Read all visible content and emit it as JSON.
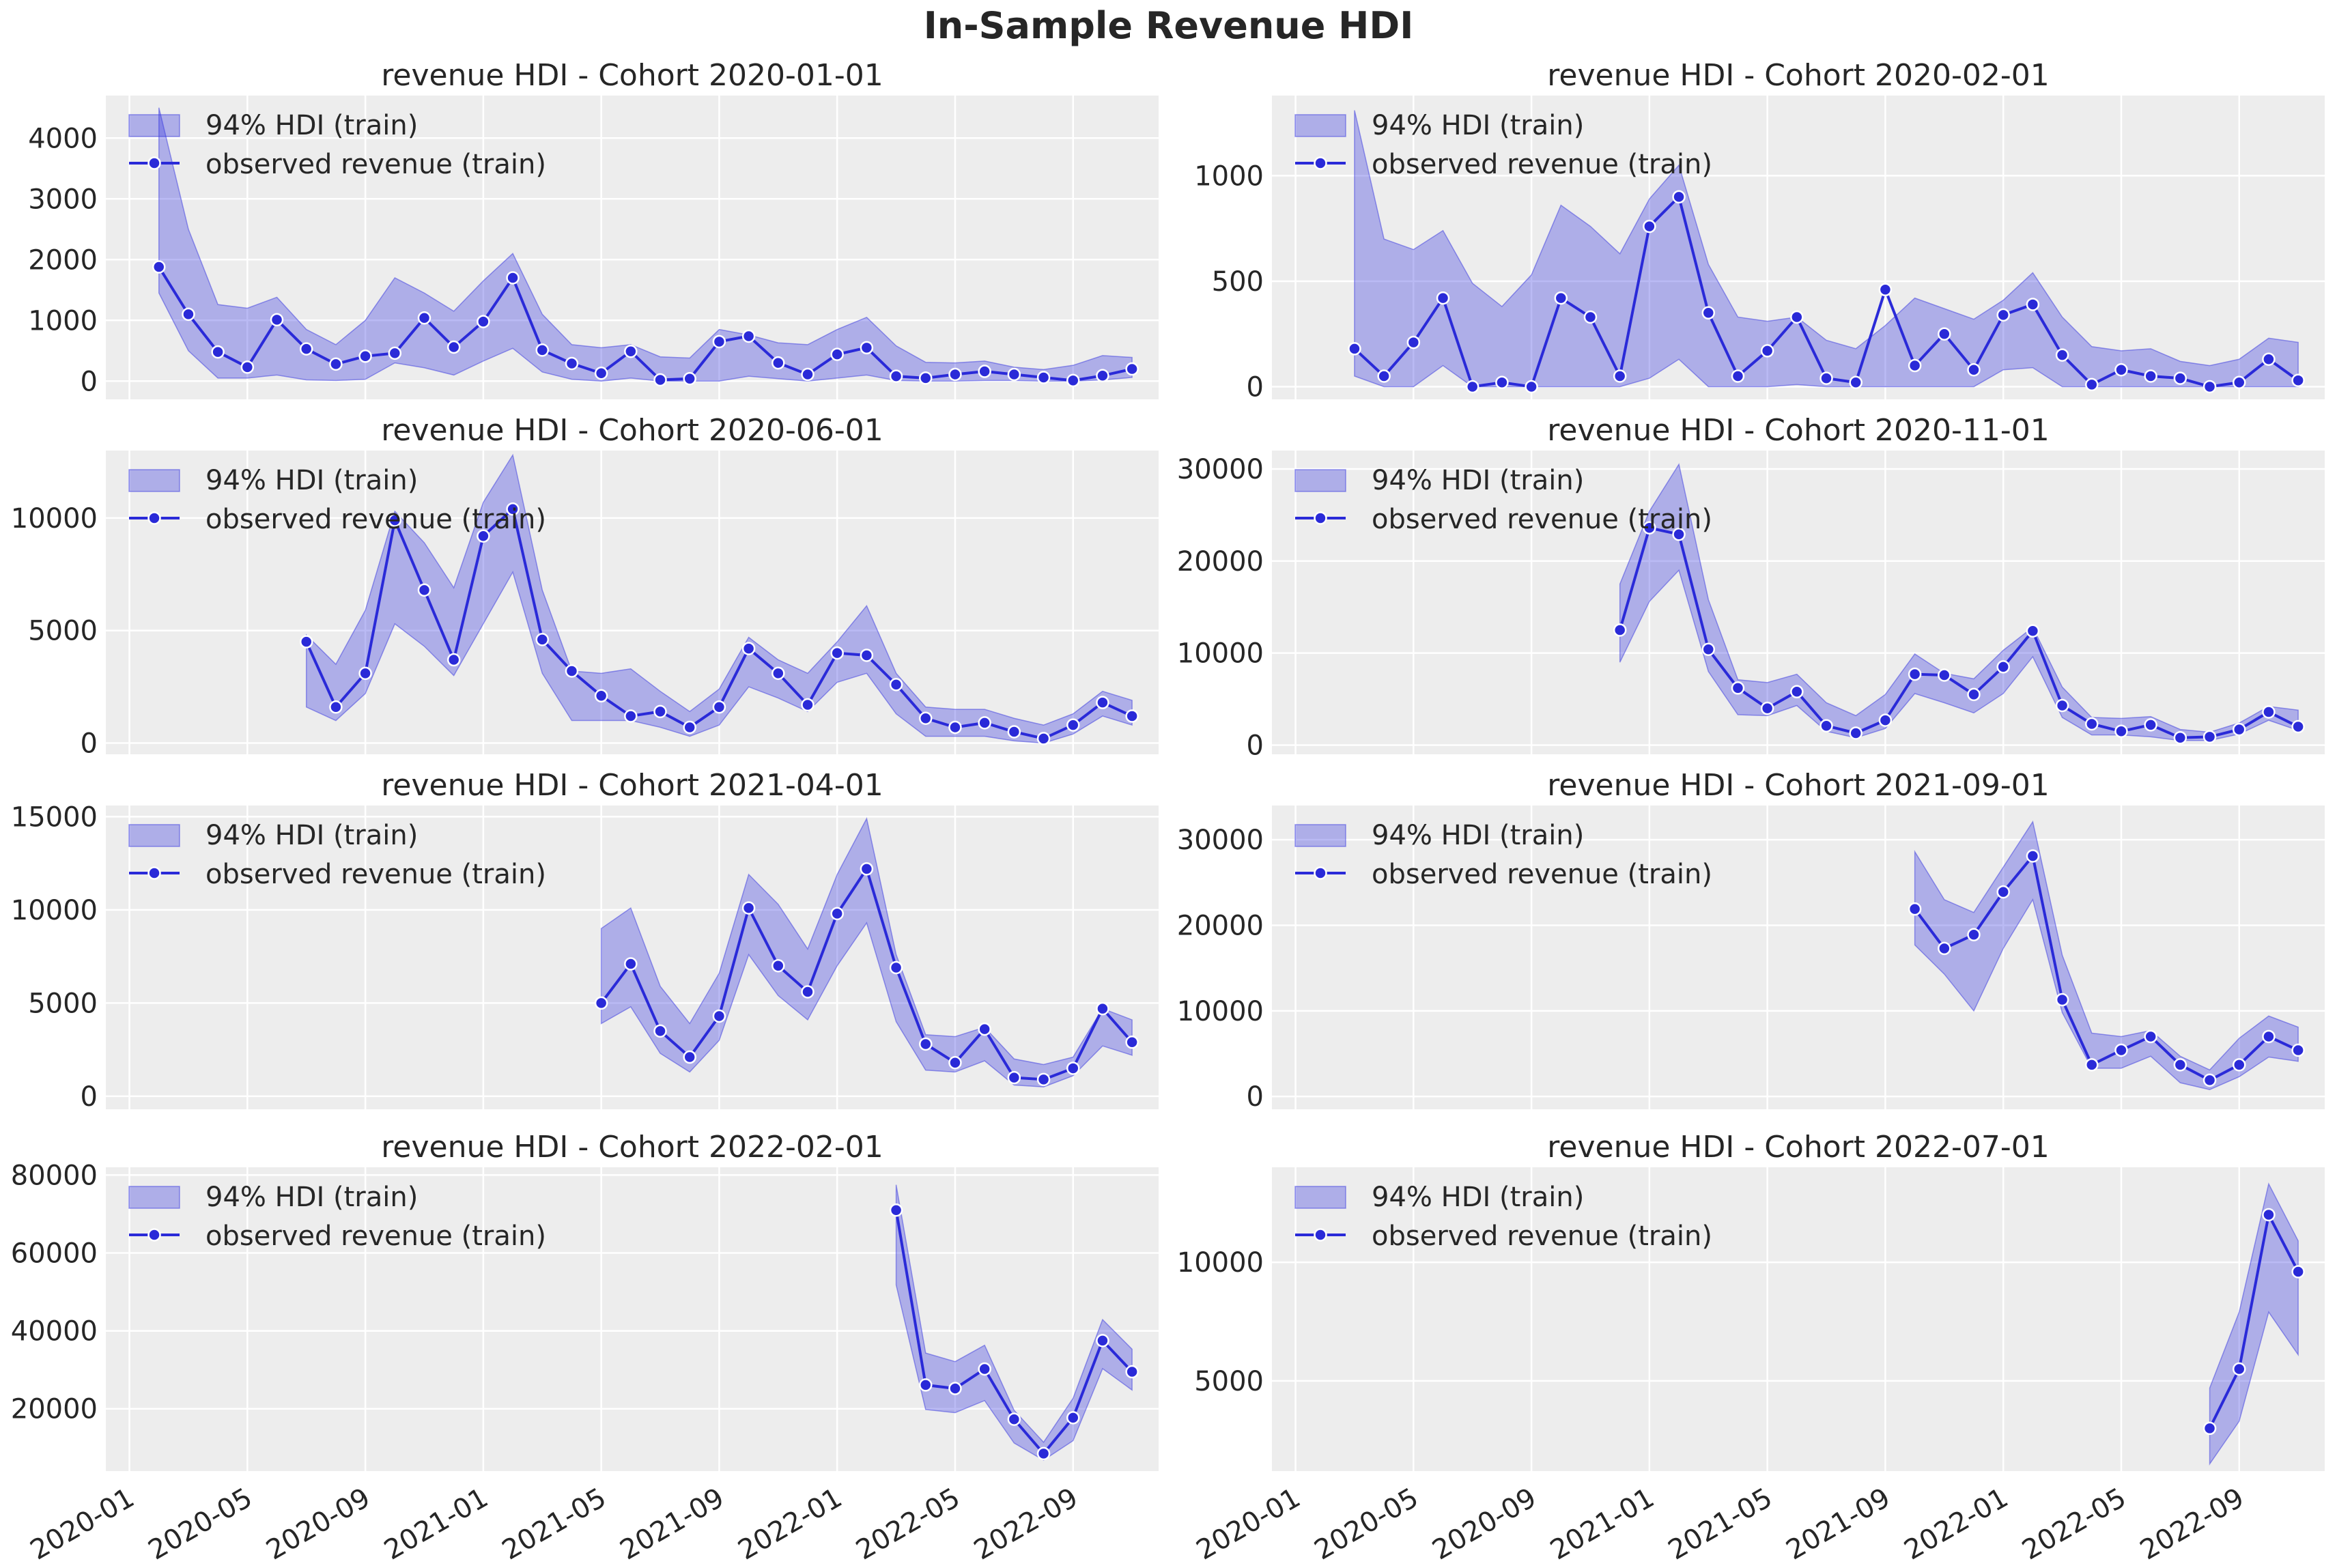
{
  "figure": {
    "suptitle": "In-Sample Revenue HDI"
  },
  "colors": {
    "band": "#3a3ae0",
    "line": "#2a2ad8",
    "panel_bg": "#ededed",
    "grid": "#ffffff",
    "text": "#262626"
  },
  "legend": {
    "hdi_label": "94% HDI (train)",
    "observed_label": "observed revenue (train)",
    "placement": "upper-left"
  },
  "x_tick_labels": [
    "2020-01",
    "2020-05",
    "2020-09",
    "2021-01",
    "2021-05",
    "2021-09",
    "2022-01",
    "2022-05",
    "2022-09"
  ],
  "chart_data": [
    {
      "type": "line",
      "title": "revenue HDI - Cohort 2020-01-01",
      "start": "2020-02",
      "ylim": [
        -300,
        4700
      ],
      "yticks": [
        0,
        1000,
        2000,
        3000,
        4000
      ],
      "observed": [
        1880,
        1100,
        480,
        230,
        1010,
        530,
        280,
        410,
        460,
        1040,
        560,
        980,
        1700,
        510,
        290,
        130,
        490,
        20,
        40,
        650,
        740,
        300,
        110,
        440,
        550,
        80,
        50,
        110,
        160,
        110,
        60,
        10,
        90,
        200
      ],
      "hdi_low": [
        1450,
        500,
        50,
        50,
        100,
        20,
        10,
        30,
        300,
        220,
        100,
        330,
        540,
        150,
        30,
        0,
        50,
        0,
        0,
        0,
        80,
        40,
        0,
        50,
        100,
        10,
        0,
        0,
        10,
        10,
        0,
        0,
        20,
        60
      ],
      "hdi_high": [
        4500,
        2500,
        1260,
        1200,
        1380,
        850,
        600,
        1000,
        1700,
        1450,
        1150,
        1650,
        2100,
        1100,
        600,
        550,
        600,
        400,
        380,
        850,
        760,
        630,
        600,
        850,
        1050,
        580,
        310,
        300,
        330,
        230,
        190,
        260,
        420,
        390
      ]
    },
    {
      "type": "line",
      "title": "revenue HDI - Cohort 2020-02-01",
      "start": "2020-03",
      "ylim": [
        -60,
        1380
      ],
      "yticks": [
        0,
        500,
        1000
      ],
      "observed": [
        180,
        50,
        210,
        420,
        0,
        20,
        0,
        420,
        330,
        50,
        760,
        900,
        350,
        50,
        170,
        330,
        40,
        20,
        460,
        100,
        250,
        80,
        340,
        390,
        150,
        10,
        80,
        50,
        40,
        0,
        20,
        130,
        30
      ],
      "hdi_low": [
        50,
        0,
        0,
        100,
        0,
        0,
        0,
        0,
        0,
        0,
        40,
        130,
        0,
        0,
        0,
        10,
        0,
        0,
        0,
        0,
        0,
        0,
        80,
        90,
        0,
        0,
        0,
        0,
        0,
        0,
        0,
        0,
        0
      ],
      "hdi_high": [
        1310,
        700,
        650,
        740,
        490,
        380,
        530,
        860,
        760,
        630,
        890,
        1050,
        580,
        330,
        310,
        330,
        220,
        180,
        290,
        420,
        370,
        320,
        410,
        540,
        330,
        190,
        170,
        180,
        120,
        100,
        130,
        230,
        210
      ]
    },
    {
      "type": "line",
      "title": "revenue HDI - Cohort 2020-06-01",
      "start": "2020-07",
      "ylim": [
        -500,
        13000
      ],
      "yticks": [
        0,
        5000,
        10000
      ],
      "observed": [
        4500,
        1600,
        3100,
        9900,
        6800,
        3700,
        9200,
        10400,
        4600,
        3200,
        2100,
        1200,
        1400,
        700,
        1600,
        4200,
        3100,
        1700,
        4000,
        3900,
        2600,
        1100,
        700,
        900,
        500,
        200,
        800,
        1800,
        1200
      ],
      "hdi_low": [
        1600,
        1000,
        2200,
        5300,
        4300,
        3000,
        5300,
        7600,
        3100,
        1000,
        1000,
        1000,
        700,
        300,
        800,
        2500,
        2000,
        1400,
        2700,
        3100,
        1300,
        300,
        300,
        300,
        100,
        0,
        400,
        1200,
        800
      ],
      "hdi_high": [
        4800,
        3500,
        5900,
        10300,
        8900,
        6900,
        10700,
        12800,
        6800,
        3200,
        3100,
        3300,
        2300,
        1400,
        2400,
        4700,
        3700,
        3100,
        4500,
        6100,
        3100,
        1600,
        1500,
        1500,
        1100,
        800,
        1300,
        2300,
        1900
      ]
    },
    {
      "type": "line",
      "title": "revenue HDI - Cohort 2020-11-01",
      "start": "2020-12",
      "ylim": [
        -1000,
        32000
      ],
      "yticks": [
        0,
        10000,
        20000,
        30000
      ],
      "observed": [
        12500,
        23600,
        22900,
        10400,
        6200,
        4000,
        5800,
        2100,
        1300,
        2700,
        7700,
        7600,
        5500,
        8500,
        12400,
        4300,
        2300,
        1500,
        2200,
        800,
        900,
        1700,
        3600,
        2000
      ],
      "hdi_low": [
        9000,
        15600,
        19000,
        8000,
        3300,
        3200,
        4300,
        1500,
        800,
        1800,
        5600,
        4600,
        3500,
        5600,
        9600,
        3000,
        1100,
        1100,
        900,
        500,
        500,
        1200,
        2700,
        1600
      ],
      "hdi_high": [
        17500,
        25400,
        30500,
        15800,
        7100,
        6800,
        7700,
        4600,
        3200,
        5500,
        9900,
        7800,
        7200,
        10300,
        12800,
        6300,
        3000,
        2900,
        3100,
        1700,
        1400,
        2400,
        4200,
        3800
      ]
    },
    {
      "type": "line",
      "title": "revenue HDI - Cohort 2021-04-01",
      "start": "2021-05",
      "ylim": [
        -700,
        15600
      ],
      "yticks": [
        0,
        5000,
        10000,
        15000
      ],
      "observed": [
        5000,
        7100,
        3500,
        2100,
        4300,
        10100,
        7000,
        5600,
        9800,
        12200,
        6900,
        2800,
        1800,
        3600,
        1000,
        900,
        1500,
        4700,
        2900
      ],
      "hdi_low": [
        3900,
        4800,
        2300,
        1300,
        3000,
        7600,
        5400,
        4100,
        7000,
        9300,
        4000,
        1400,
        1300,
        1900,
        600,
        500,
        1100,
        2700,
        2200
      ],
      "hdi_high": [
        9000,
        10100,
        5900,
        3900,
        6600,
        11900,
        10300,
        7900,
        11900,
        14900,
        7600,
        3300,
        3200,
        3700,
        2000,
        1700,
        2100,
        4700,
        4100
      ]
    },
    {
      "type": "line",
      "title": "revenue HDI - Cohort 2021-09-01",
      "start": "2021-10",
      "ylim": [
        -1500,
        34000
      ],
      "yticks": [
        0,
        10000,
        20000,
        30000
      ],
      "observed": [
        21900,
        17300,
        18900,
        23900,
        28100,
        11300,
        3700,
        5400,
        7000,
        3700,
        1900,
        3700,
        7000,
        5400
      ],
      "hdi_low": [
        17700,
        14300,
        10000,
        17300,
        23000,
        9800,
        3300,
        3300,
        4700,
        1600,
        800,
        2300,
        4600,
        4100
      ],
      "hdi_high": [
        28600,
        23000,
        21500,
        26800,
        32100,
        16500,
        7400,
        7000,
        7700,
        4700,
        3100,
        6800,
        9400,
        8100
      ]
    },
    {
      "type": "line",
      "title": "revenue HDI - Cohort 2022-02-01",
      "start": "2022-03",
      "ylim": [
        4000,
        82000
      ],
      "yticks": [
        20000,
        40000,
        60000,
        80000
      ],
      "observed": [
        71000,
        26100,
        25200,
        30200,
        17300,
        8500,
        17700,
        37500,
        29500
      ],
      "hdi_low": [
        51800,
        19800,
        19000,
        22100,
        11200,
        6800,
        11800,
        30300,
        24800
      ],
      "hdi_high": [
        77500,
        34300,
        32100,
        36300,
        19600,
        11400,
        22700,
        42900,
        35300
      ]
    },
    {
      "type": "line",
      "title": "revenue HDI - Cohort 2022-07-01",
      "start": "2022-08",
      "ylim": [
        1200,
        14000
      ],
      "yticks": [
        5000,
        10000
      ],
      "observed": [
        3000,
        5500,
        12000,
        9600
      ],
      "hdi_low": [
        1500,
        3300,
        7900,
        6100
      ],
      "hdi_high": [
        4700,
        7900,
        13300,
        10900
      ]
    }
  ]
}
